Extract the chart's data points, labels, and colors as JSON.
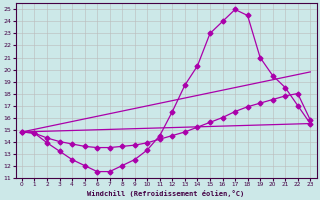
{
  "xlabel": "Windchill (Refroidissement éolien,°C)",
  "bg_color": "#cce8e8",
  "line_color": "#aa00aa",
  "grid_color": "#bbbbbb",
  "xlim": [
    -0.5,
    23.5
  ],
  "ylim": [
    11,
    25.5
  ],
  "xticks": [
    0,
    1,
    2,
    3,
    4,
    5,
    6,
    7,
    8,
    9,
    10,
    11,
    12,
    13,
    14,
    15,
    16,
    17,
    18,
    19,
    20,
    21,
    22,
    23
  ],
  "yticks": [
    11,
    12,
    13,
    14,
    15,
    16,
    17,
    18,
    19,
    20,
    21,
    22,
    23,
    24,
    25
  ],
  "line1_x": [
    0,
    1,
    2,
    3,
    4,
    5,
    6,
    7,
    8,
    9,
    10,
    11,
    12,
    13,
    14,
    15,
    16,
    17,
    18,
    19,
    20,
    21,
    22,
    23
  ],
  "line1_y": [
    14.8,
    14.7,
    13.9,
    13.2,
    12.5,
    12.0,
    11.5,
    11.5,
    12.0,
    12.5,
    13.3,
    14.5,
    16.5,
    18.7,
    20.3,
    23.0,
    24.0,
    25.0,
    24.5,
    21.0,
    19.5,
    18.5,
    17.0,
    15.5
  ],
  "line2_x": [
    0,
    1,
    2,
    3,
    4,
    5,
    6,
    7,
    8,
    9,
    10,
    11,
    12,
    13,
    14,
    15,
    16,
    17,
    18,
    19,
    20,
    21,
    22,
    23
  ],
  "line2_y": [
    14.8,
    14.7,
    14.3,
    14.0,
    13.8,
    13.6,
    13.5,
    13.5,
    13.6,
    13.7,
    13.9,
    14.2,
    14.5,
    14.8,
    15.2,
    15.6,
    16.0,
    16.5,
    16.9,
    17.2,
    17.5,
    17.8,
    18.0,
    15.8
  ],
  "line3_x": [
    0,
    23
  ],
  "line3_y": [
    14.8,
    19.8
  ],
  "line4_x": [
    0,
    23
  ],
  "line4_y": [
    14.8,
    15.5
  ],
  "markersize": 2.5,
  "linewidth": 0.9
}
